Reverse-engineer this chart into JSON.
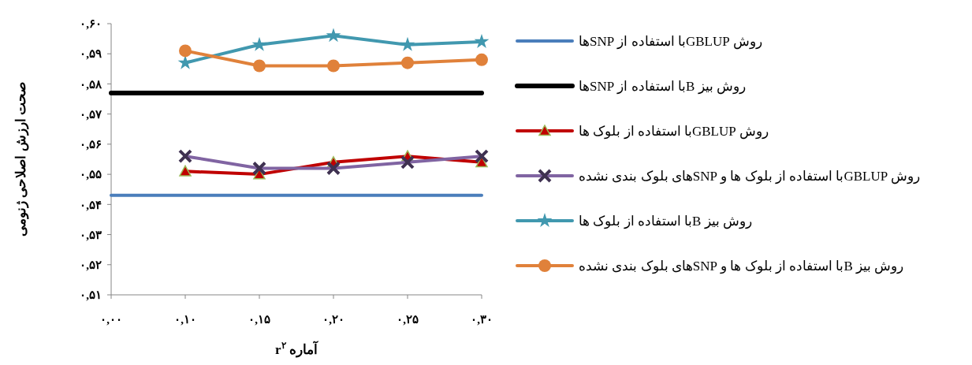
{
  "chart_data": {
    "type": "line",
    "xlabel": "آماره r$^{۲}$",
    "ylabel": "صحت ارزش اصلاحی ژنومی",
    "categories": [
      "۰,۰۰",
      "۰,۱۰",
      "۰,۱۵",
      "۰,۲۰",
      "۰,۲۵",
      "۰,۳۰"
    ],
    "ylim": [
      0.51,
      0.6
    ],
    "yticks": [
      {
        "value": 0.51,
        "label": "۰,۵۱"
      },
      {
        "value": 0.52,
        "label": "۰,۵۲"
      },
      {
        "value": 0.53,
        "label": "۰,۵۳"
      },
      {
        "value": 0.54,
        "label": "۰,۵۴"
      },
      {
        "value": 0.55,
        "label": "۰,۵۵"
      },
      {
        "value": 0.56,
        "label": "۰,۵۶"
      },
      {
        "value": 0.57,
        "label": "۰,۵۷"
      },
      {
        "value": 0.58,
        "label": "۰,۵۸"
      },
      {
        "value": 0.59,
        "label": "۰,۵۹"
      },
      {
        "value": 0.6,
        "label": "۰,۶۰"
      }
    ],
    "grid": false,
    "legend": "right",
    "series": [
      {
        "name": "روش GBLUPبا استفاده از SNPها",
        "color": "#4a7ebb",
        "marker": "none",
        "values": [
          0.543,
          0.543,
          0.543,
          0.543,
          0.543,
          0.543
        ]
      },
      {
        "name": "روش بیز Bبا استفاده از SNPها",
        "color": "#000000",
        "marker": "none",
        "values": [
          0.577,
          0.577,
          0.577,
          0.577,
          0.577,
          0.577
        ]
      },
      {
        "name": "روش GBLUPبا استفاده از بلوک ها",
        "color": "#c00000",
        "marker": "triangle",
        "values": [
          null,
          0.551,
          0.55,
          0.554,
          0.556,
          0.554
        ]
      },
      {
        "name": "روش GBLUPبا استفاده از بلوک ها و SNPهای بلوک بندی نشده",
        "color": "#8064a2",
        "marker": "cross",
        "values": [
          null,
          0.556,
          0.552,
          0.552,
          0.554,
          0.556
        ]
      },
      {
        "name": "روش بیز Bبا استفاده از بلوک ها",
        "color": "#4198af",
        "marker": "star",
        "values": [
          null,
          0.587,
          0.593,
          0.596,
          0.593,
          0.594
        ]
      },
      {
        "name": "روش بیز Bبا استفاده از بلوک ها و SNPهای بلوک بندی نشده",
        "color": "#e0813a",
        "marker": "circle",
        "values": [
          null,
          0.591,
          0.586,
          0.586,
          0.587,
          0.588
        ]
      }
    ]
  }
}
